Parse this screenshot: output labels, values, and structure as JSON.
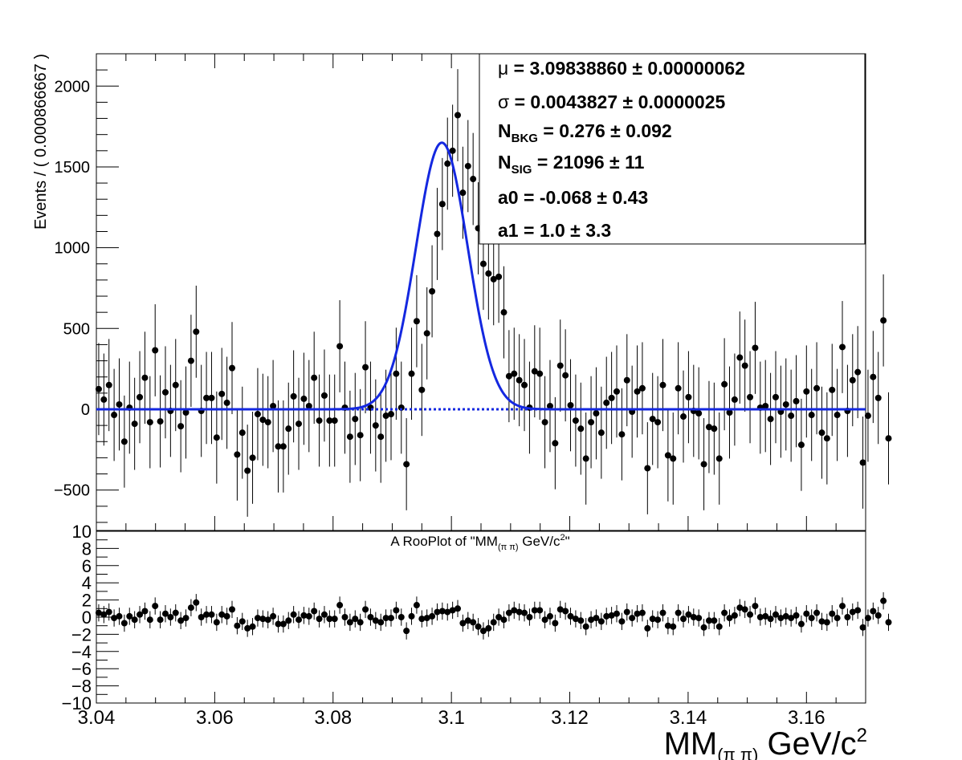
{
  "chart_data": [
    {
      "type": "scatter",
      "panel": "main",
      "title": "",
      "ylabel": "Events / ( 0.000866667 )",
      "xlim": [
        3.04,
        3.17
      ],
      "ylim": [
        -750,
        2200
      ],
      "y_ticks": [
        -500,
        0,
        500,
        1000,
        1500,
        2000
      ],
      "y_tick_labels": [
        "−500",
        "0",
        "500",
        "1000",
        "1500",
        "2000"
      ],
      "grid": false,
      "legend_position": "top-right",
      "fit_params": [
        {
          "name": "μ",
          "sub": "",
          "value": "3.09838860",
          "error": "0.00000062"
        },
        {
          "name": "σ",
          "sub": "",
          "value": "0.0043827",
          "error": "0.0000025"
        },
        {
          "name": "N",
          "sub": "BKG",
          "value": "0.276",
          "error": "0.092"
        },
        {
          "name": "N",
          "sub": "SIG",
          "value": "21096",
          "error": "11"
        },
        {
          "name": "a0",
          "sub": "",
          "value": "-0.068",
          "error": "0.43"
        },
        {
          "name": "a1",
          "sub": "",
          "value": "1.0",
          "error": "3.3"
        }
      ],
      "series": [
        {
          "type": "scatter",
          "kind": "data_points",
          "x_start": 3.0404,
          "x_step": 0.000866667,
          "y": [
            125,
            60,
            150,
            -35,
            30,
            -200,
            10,
            -90,
            75,
            195,
            -80,
            365,
            -75,
            105,
            -10,
            150,
            -105,
            -20,
            300,
            480,
            -10,
            70,
            70,
            -175,
            95,
            40,
            255,
            -280,
            -145,
            -380,
            -300,
            -30,
            -65,
            -80,
            20,
            -230,
            -230,
            -120,
            80,
            -90,
            65,
            20,
            195,
            -70,
            85,
            -70,
            -70,
            390,
            10,
            -170,
            -60,
            -160,
            260,
            10,
            -100,
            -170,
            -40,
            -30,
            220,
            10,
            -340,
            220,
            545,
            120,
            470,
            730,
            1085,
            1270,
            1520,
            1600,
            1820,
            1340,
            1505,
            1425,
            1120,
            900,
            840,
            805,
            820,
            600,
            205,
            220,
            180,
            150,
            10,
            235,
            220,
            -80,
            20,
            -210,
            270,
            210,
            25,
            -70,
            -120,
            -305,
            -80,
            -25,
            -145,
            40,
            70,
            110,
            -155,
            180,
            -15,
            110,
            130,
            -365,
            -60,
            -80,
            150,
            -285,
            -305,
            130,
            -45,
            75,
            -10,
            -25,
            -340,
            -110,
            -120,
            -305,
            155,
            -20,
            60,
            320,
            270,
            75,
            380,
            10,
            20,
            -60,
            75,
            -15,
            30,
            -40,
            50,
            -220,
            110,
            -35,
            130,
            -145,
            -180,
            120,
            -35,
            385,
            -10,
            180,
            230,
            -330,
            -40,
            200,
            70,
            550,
            -180
          ],
          "yerr": 285
        },
        {
          "type": "line",
          "kind": "fit_total",
          "color": "#1428e0",
          "mu": 3.0983886,
          "sigma": 0.0043827,
          "peak": 1650
        },
        {
          "type": "line",
          "kind": "fit_background",
          "color": "#1428e0",
          "style": "dotted",
          "y": 0
        }
      ]
    },
    {
      "type": "scatter",
      "panel": "pull",
      "title": "A RooPlot of \"MM(π π) GeV/c2\"",
      "title_parts": {
        "pre": "A RooPlot of \"MM",
        "sub": "(π π)",
        "mid": " GeV/c",
        "sup": "2",
        "post": "\""
      },
      "xlabel": "MM(π π) GeV/c2",
      "xlabel_parts": {
        "pre": "MM",
        "sub": "(π π)",
        "mid": " GeV/c",
        "sup": "2"
      },
      "xlim": [
        3.04,
        3.17
      ],
      "ylim": [
        -10,
        10
      ],
      "x_ticks": [
        3.04,
        3.06,
        3.08,
        3.1,
        3.12,
        3.14,
        3.16
      ],
      "x_tick_labels": [
        "3.04",
        "3.06",
        "3.08",
        "3.1",
        "3.12",
        "3.14",
        "3.16"
      ],
      "y_ticks": [
        -10,
        -8,
        -6,
        -4,
        -2,
        0,
        2,
        4,
        6,
        8,
        10
      ],
      "y_tick_labels": [
        "−10",
        "−8",
        "−6",
        "−4",
        "−2",
        "0",
        "2",
        "4",
        "6",
        "8",
        "10"
      ],
      "grid": false,
      "series": [
        {
          "type": "scatter",
          "kind": "pull_points",
          "x_start": 3.0404,
          "x_step": 0.000866667,
          "y": [
            0.5,
            0.3,
            0.6,
            -0.1,
            0.1,
            -0.7,
            0.1,
            -0.3,
            0.3,
            0.7,
            -0.3,
            1.3,
            -0.3,
            0.4,
            0,
            0.5,
            -0.4,
            -0.1,
            1.1,
            1.7,
            0,
            0.3,
            0.3,
            -0.6,
            0.3,
            0.1,
            0.9,
            -1,
            -0.5,
            -1.3,
            -1.1,
            -0.1,
            -0.2,
            -0.3,
            0.1,
            -0.8,
            -0.8,
            -0.4,
            0.3,
            -0.3,
            0.2,
            0.1,
            0.7,
            -0.2,
            0.3,
            -0.2,
            -0.2,
            1.4,
            0,
            -0.6,
            -0.2,
            -0.6,
            0.9,
            0,
            -0.4,
            -0.6,
            -0.1,
            -0.1,
            0.8,
            0,
            -1.6,
            0.1,
            1.4,
            -0.2,
            -0.1,
            0.1,
            0.6,
            0.7,
            0.6,
            0.8,
            1,
            -0.7,
            -0.4,
            -0.6,
            -1.1,
            -1.6,
            -1.3,
            -0.6,
            0,
            -0.3,
            0.5,
            0.8,
            0.6,
            0.5,
            0,
            0.8,
            0.8,
            -0.3,
            0.1,
            -0.7,
            0.9,
            0.7,
            0.1,
            -0.2,
            -0.4,
            -1.1,
            -0.3,
            -0.1,
            -0.5,
            0.1,
            0.2,
            0.4,
            -0.5,
            0.6,
            -0.1,
            0.4,
            0.5,
            -1.3,
            -0.2,
            -0.3,
            0.5,
            -1,
            -1.1,
            0.5,
            -0.2,
            0.3,
            0,
            -0.1,
            -1.2,
            -0.4,
            -0.4,
            -1.1,
            0.5,
            -0.1,
            0.2,
            1.1,
            0.9,
            0.3,
            1.3,
            0,
            0.1,
            -0.2,
            0.3,
            -0.1,
            0.1,
            -0.1,
            0.2,
            -0.8,
            0.4,
            -0.1,
            0.5,
            -0.5,
            -0.6,
            0.4,
            -0.1,
            1.3,
            0,
            0.6,
            0.8,
            -1.2,
            -0.1,
            0.7,
            0.2,
            1.9,
            -0.6
          ],
          "yerr": 1.0
        }
      ]
    }
  ]
}
